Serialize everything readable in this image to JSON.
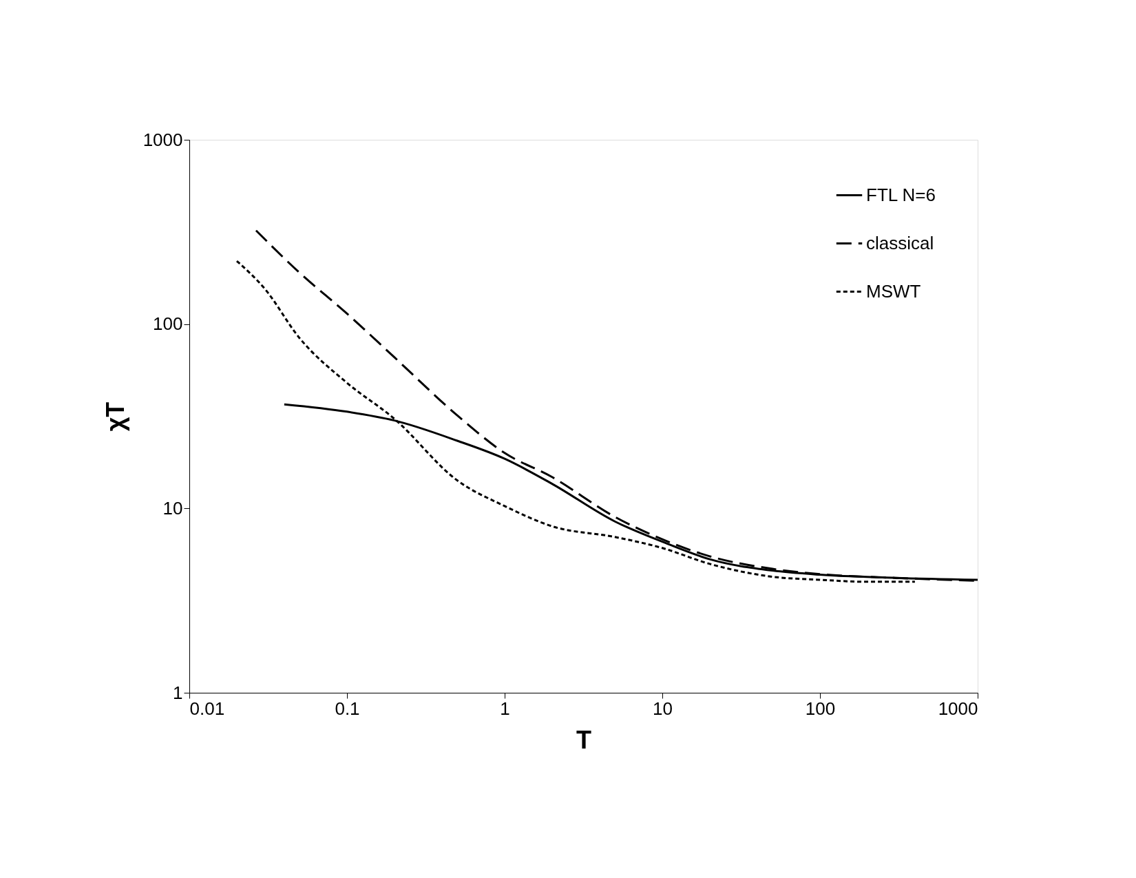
{
  "chart_data": {
    "type": "line",
    "xlabel": "T",
    "ylabel": "χT",
    "log": "xy",
    "xlim": [
      0.01,
      1000
    ],
    "ylim": [
      1,
      1000
    ],
    "xticks": [
      0.01,
      0.1,
      1,
      10,
      100,
      1000
    ],
    "yticks": [
      1,
      10,
      100,
      1000
    ],
    "grid": false,
    "legend": "top right",
    "marker": "none",
    "series": [
      {
        "name": "FTL N=6",
        "color": "#000000",
        "line_style": "solid",
        "x": [
          0.04,
          0.1,
          0.2,
          0.5,
          1,
          2,
          5,
          10,
          20,
          50,
          100,
          300,
          1000
        ],
        "values": [
          36.7,
          33.5,
          30,
          23.3,
          18.6,
          13.6,
          8.5,
          6.6,
          5.3,
          4.6,
          4.37,
          4.2,
          4.1
        ]
      },
      {
        "name": "classical",
        "color": "#000000",
        "line_style": "dashed",
        "x": [
          0.0265,
          0.05,
          0.1,
          0.2,
          0.5,
          1,
          2,
          5,
          10,
          20,
          50,
          100,
          300,
          1000
        ],
        "values": [
          322,
          190,
          114,
          66,
          32,
          20,
          14.8,
          9.0,
          6.8,
          5.5,
          4.7,
          4.4,
          4.2,
          4.05
        ]
      },
      {
        "name": "MSWT",
        "color": "#000000",
        "line_style": "dotted",
        "x": [
          0.02,
          0.03,
          0.05,
          0.1,
          0.2,
          0.5,
          1,
          2,
          5,
          10,
          20,
          50,
          100,
          200,
          400
        ],
        "values": [
          220,
          156,
          84,
          48,
          30.6,
          14.2,
          10.3,
          8.0,
          7.0,
          6.1,
          5.0,
          4.26,
          4.1,
          4.0,
          4.0
        ]
      }
    ]
  }
}
